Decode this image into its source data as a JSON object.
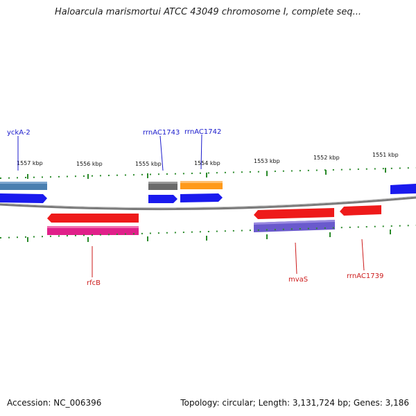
{
  "title": "Haloarcula marismortui ATCC 43049 chromosome I, complete seq...",
  "footer": {
    "accession": "Accession: NC_006396",
    "topology": "Topology: circular; Length: 3,131,724 bp; Genes: 3,186"
  },
  "colors": {
    "backbone": "#888888",
    "tick": "#2a8a2a",
    "upper_label": "#1a1acc",
    "lower_label": "#cc1a1a"
  },
  "scale": {
    "upper_ticks": [
      {
        "label": "1557 kbp"
      },
      {
        "label": "1556 kbp"
      },
      {
        "label": "1555 kbp"
      },
      {
        "label": "1554 kbp"
      },
      {
        "label": "1553 kbp"
      },
      {
        "label": "1552 kbp"
      },
      {
        "label": "1551 kbp"
      }
    ]
  },
  "features": {
    "upper_labels": [
      {
        "name": "yckA-2"
      },
      {
        "name": "rrnAC1743"
      },
      {
        "name": "rrnAC1742"
      }
    ],
    "lower_labels": [
      {
        "name": "rfcB"
      },
      {
        "name": "mvaS"
      },
      {
        "name": "rrnAC1739"
      }
    ]
  }
}
